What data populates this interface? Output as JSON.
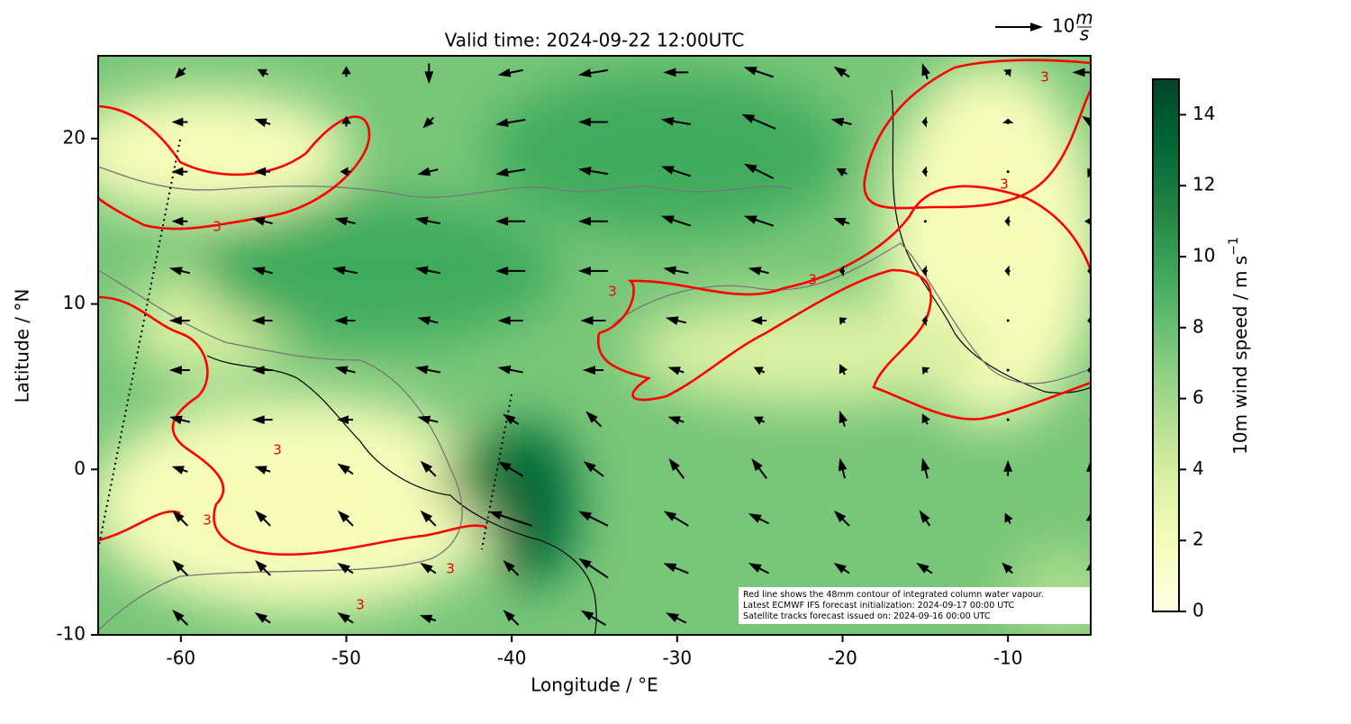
{
  "chart_data": {
    "type": "quiver-map",
    "title": "Valid time: 2024-09-22 12:00UTC",
    "x_label": "Longitude / °E",
    "y_label": "Latitude / °N",
    "xlim": [
      -65,
      -5
    ],
    "xticks": [
      -60,
      -50,
      -40,
      -30,
      -20,
      -10
    ],
    "ylim": [
      -10,
      25
    ],
    "yticks": [
      -10,
      0,
      10,
      20
    ],
    "colorbar": {
      "label": "10m wind speed / m s",
      "label_sup": "−1",
      "lim": [
        0,
        15
      ],
      "ticks": [
        0,
        2,
        4,
        6,
        8,
        10,
        12,
        14
      ],
      "colormap": [
        "#ffffe5",
        "#f7fcb9",
        "#d9f0a3",
        "#addd8e",
        "#78c679",
        "#41ab5d",
        "#238443",
        "#006837",
        "#004529"
      ]
    },
    "quiver_key": {
      "value": 10,
      "unit_num": "m",
      "unit_den": "s"
    },
    "contour_label": "3",
    "annotations": [
      "Red line shows the 48mm contour of integrated column water vapour.",
      "Latest ECMWF IFS forecast initialization: 2024-09-17 00:00 UTC",
      "Satellite tracks forecast issued on: 2024-09-16 00:00 UTC"
    ],
    "wind": {
      "lon": [
        -60,
        -55,
        -50,
        -45,
        -40,
        -35,
        -30,
        -25,
        -20,
        -15,
        -10,
        -5
      ],
      "lat": [
        24,
        21,
        18,
        15,
        12,
        9,
        6,
        3,
        0,
        -3,
        -6,
        -9
      ],
      "u": [
        [
          -2,
          -2,
          0,
          0,
          -5,
          -6,
          -5,
          -6,
          -3,
          -1,
          1,
          -7
        ],
        [
          -3,
          -3,
          0,
          -2,
          -6,
          -6,
          -6,
          -7,
          -4,
          -1,
          0,
          -3
        ],
        [
          -3,
          -3,
          -2,
          -4,
          -6,
          -6,
          -6,
          -6,
          -2,
          -1,
          0,
          -1
        ],
        [
          -3,
          -4,
          -4,
          -5,
          -6,
          -6,
          -6,
          -6,
          -3,
          0,
          -1,
          -2
        ],
        [
          -4,
          -4,
          -5,
          -5,
          -6,
          -6,
          -5,
          -4,
          -1,
          -1,
          -1,
          -1
        ],
        [
          -4,
          -4,
          -4,
          -4,
          -5,
          -5,
          -4,
          -3,
          -1,
          -1,
          0,
          -1
        ],
        [
          -4,
          -4,
          -4,
          -5,
          -5,
          -4,
          -3,
          -2,
          -1,
          -1,
          0,
          -1
        ],
        [
          -4,
          -4,
          -3,
          -4,
          -3,
          -3,
          -3,
          -2,
          -1,
          -1,
          0,
          0
        ],
        [
          -3,
          -3,
          -3,
          -3,
          -5,
          -4,
          -3,
          -3,
          -1,
          -1,
          0,
          0
        ],
        [
          -3,
          -3,
          -3,
          -3,
          -9,
          -6,
          -5,
          -4,
          -3,
          -2,
          -1,
          0
        ],
        [
          -3,
          -3,
          -3,
          -3,
          -3,
          -6,
          -5,
          -4,
          -3,
          -3,
          -2,
          0
        ],
        [
          -3,
          -3,
          -3,
          -3,
          -3,
          -5,
          -4,
          -3,
          -2,
          -1,
          0,
          0
        ]
      ],
      "v": [
        [
          -2,
          1,
          2,
          -4,
          -1,
          -1,
          0,
          2,
          2,
          3,
          1,
          0
        ],
        [
          0,
          1,
          2,
          -2,
          -1,
          0,
          1,
          3,
          1,
          0,
          1,
          2
        ],
        [
          0,
          0,
          0,
          -1,
          -1,
          1,
          2,
          3,
          1,
          0,
          0,
          -2
        ],
        [
          0,
          1,
          1,
          1,
          0,
          0,
          2,
          2,
          1,
          0,
          0,
          0
        ],
        [
          1,
          1,
          1,
          1,
          0,
          0,
          1,
          1,
          0,
          0,
          0,
          0
        ],
        [
          0,
          0,
          0,
          1,
          0,
          0,
          1,
          0,
          1,
          0,
          0,
          0
        ],
        [
          0,
          0,
          1,
          1,
          1,
          0,
          1,
          1,
          2,
          1,
          0,
          0
        ],
        [
          1,
          0,
          0,
          1,
          2,
          3,
          1,
          1,
          3,
          2,
          0,
          0
        ],
        [
          1,
          1,
          2,
          3,
          3,
          3,
          4,
          4,
          4,
          4,
          3,
          3
        ],
        [
          3,
          3,
          3,
          3,
          3,
          3,
          3,
          2,
          3,
          3,
          2,
          2
        ],
        [
          3,
          3,
          2,
          2,
          3,
          4,
          2,
          2,
          2,
          2,
          2,
          2
        ],
        [
          3,
          2,
          2,
          1,
          3,
          3,
          2,
          2,
          2,
          2,
          2,
          2
        ]
      ]
    }
  }
}
